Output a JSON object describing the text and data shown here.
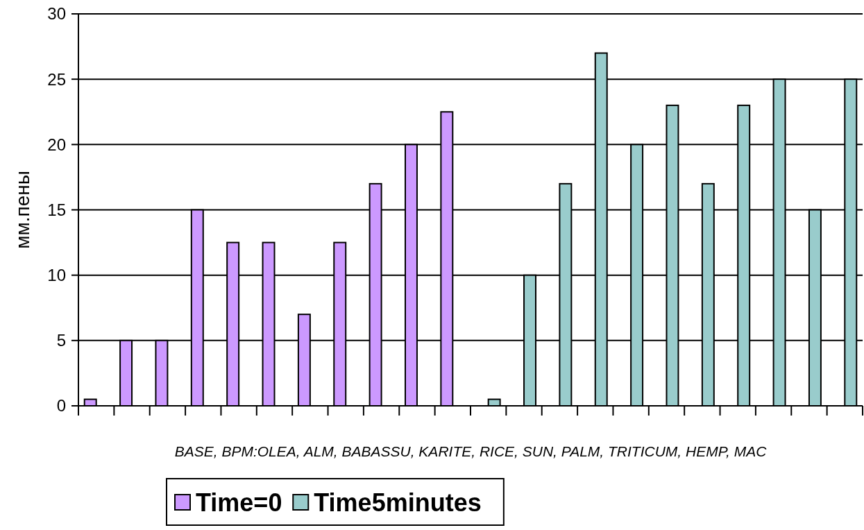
{
  "chart_data": {
    "type": "bar",
    "xlabel": "BASE, BPM:OLEA, ALM, BABASSU, KARITE, RICE, SUN, PALM, TRITICUM, HEMP, MAC",
    "ylabel": "мм.пены",
    "categories": [
      null,
      null,
      null,
      null,
      null,
      null,
      null,
      null,
      null,
      null,
      null,
      null,
      null,
      null,
      null,
      null,
      null,
      null,
      null,
      null,
      null,
      null
    ],
    "series": [
      {
        "name": "Time=0",
        "color": "#cc99ff",
        "values": [
          0.5,
          5,
          5,
          15,
          12.5,
          12.5,
          7,
          12.5,
          17,
          20,
          22.5,
          null,
          null,
          null,
          null,
          null,
          null,
          null,
          null,
          null,
          null,
          null
        ]
      },
      {
        "name": "Time5minutes",
        "color": "#99cccc",
        "values": [
          null,
          null,
          null,
          null,
          null,
          null,
          null,
          null,
          null,
          null,
          null,
          0.5,
          10,
          17,
          27,
          20,
          23,
          17,
          23,
          25,
          15,
          25
        ]
      }
    ],
    "ylim": [
      0,
      30
    ],
    "yticks": [
      0,
      5,
      10,
      15,
      20,
      25,
      30
    ],
    "grid": "y",
    "legend": "bottom"
  }
}
